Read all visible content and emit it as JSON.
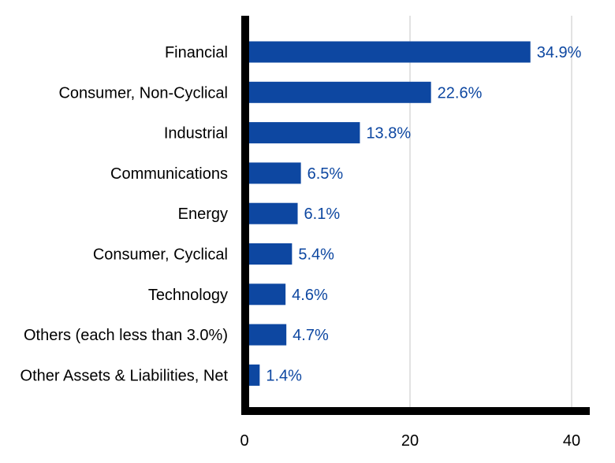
{
  "chart_data": {
    "type": "bar",
    "orientation": "horizontal",
    "categories": [
      "Financial",
      "Consumer, Non-Cyclical",
      "Industrial",
      "Communications",
      "Energy",
      "Consumer, Cyclical",
      "Technology",
      "Others (each less than 3.0%)",
      "Other Assets & Liabilities, Net"
    ],
    "values": [
      34.9,
      22.6,
      13.8,
      6.5,
      6.1,
      5.4,
      4.6,
      4.7,
      1.4
    ],
    "data_labels": [
      "34.9%",
      "22.6%",
      "13.8%",
      "6.5%",
      "6.1%",
      "5.4%",
      "4.6%",
      "4.7%",
      "1.4%"
    ],
    "xlim": [
      0,
      42.5
    ],
    "xticks": [
      0,
      20,
      40
    ],
    "xtick_labels": [
      "0",
      "20",
      "40"
    ],
    "grid": true,
    "legend": false,
    "colors": {
      "bar": "#0d47a1",
      "data_label": "#0d47a1",
      "axis": "#000000",
      "grid": "#d9d9d9"
    }
  }
}
